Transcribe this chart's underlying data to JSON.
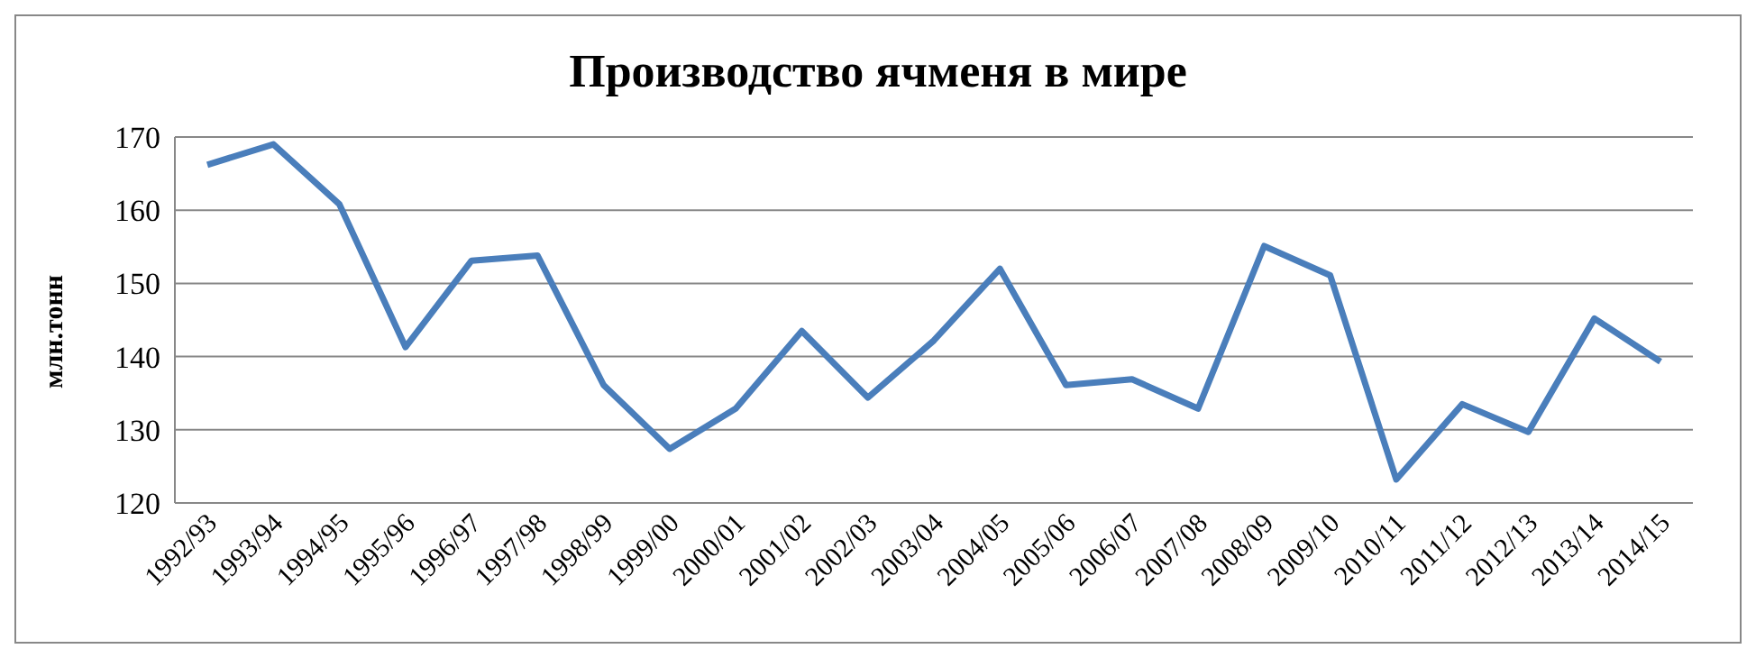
{
  "chart_data": {
    "type": "line",
    "title": "Производство ячменя в мире",
    "ylabel": "млн.тонн",
    "categories": [
      "1992/93",
      "1993/94",
      "1994/95",
      "1995/96",
      "1996/97",
      "1997/98",
      "1998/99",
      "1999/00",
      "2000/01",
      "2001/02",
      "2002/03",
      "2003/04",
      "2004/05",
      "2005/06",
      "2006/07",
      "2007/08",
      "2008/09",
      "2009/10",
      "2010/11",
      "2011/12",
      "2012/13",
      "2013/14",
      "2014/15"
    ],
    "series": [
      {
        "color": "#4a7ebb",
        "values": [
          166.2,
          169,
          160.8,
          141.3,
          153.1,
          153.8,
          136.1,
          127.4,
          132.9,
          143.5,
          134.4,
          142.2,
          152,
          136.1,
          136.9,
          132.9,
          155.1,
          151.1,
          123.2,
          133.5,
          129.7,
          145.2,
          139.3
        ]
      }
    ],
    "ylim": [
      120,
      170
    ],
    "yticks": [
      120,
      130,
      140,
      150,
      160,
      170
    ],
    "grid": "y",
    "legend": false,
    "marker": "none",
    "line_style": "solid"
  }
}
